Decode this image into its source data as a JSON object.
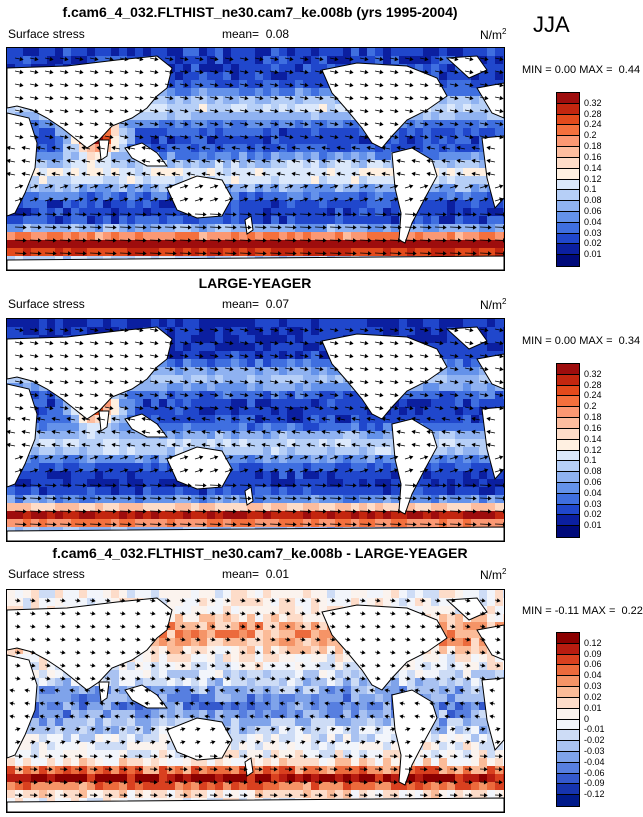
{
  "season": "JJA",
  "units_base": "N/m",
  "units_exp": "2",
  "panels": [
    {
      "title": "f.cam6_4_032.FLTHIST_ne30.cam7_ke.008b (yrs 1995-2004)",
      "variable": "Surface stress",
      "mean_label": "mean=",
      "mean": "0.08",
      "min_label": "MIN =",
      "min": "0.00",
      "max_label": "MAX =",
      "max": "0.44",
      "colorbar": [
        "0.32",
        "0.28",
        "0.24",
        "0.2",
        "0.18",
        "0.16",
        "0.14",
        "0.12",
        "0.1",
        "0.08",
        "0.06",
        "0.04",
        "0.03",
        "0.02",
        "0.01"
      ],
      "colors": [
        "#9e0d0d",
        "#c3260f",
        "#e34a1c",
        "#f4703d",
        "#fb9873",
        "#fdbd9f",
        "#fedcc8",
        "#fff0e1",
        "#dbe8fb",
        "#b6cff7",
        "#8fb2f1",
        "#6492ea",
        "#3f6fe0",
        "#2047cc",
        "#0b1fa0",
        "#000a7a"
      ],
      "field": "base"
    },
    {
      "title": "LARGE-YEAGER",
      "variable": "Surface stress",
      "mean_label": "mean=",
      "mean": "0.07",
      "min_label": "MIN =",
      "min": "0.00",
      "max_label": "MAX =",
      "max": "0.34",
      "colorbar": [
        "0.32",
        "0.28",
        "0.24",
        "0.2",
        "0.18",
        "0.16",
        "0.14",
        "0.12",
        "0.1",
        "0.08",
        "0.06",
        "0.04",
        "0.03",
        "0.02",
        "0.01"
      ],
      "colors": [
        "#9e0d0d",
        "#c3260f",
        "#e34a1c",
        "#f4703d",
        "#fb9873",
        "#fdbd9f",
        "#fedcc8",
        "#fff0e1",
        "#dbe8fb",
        "#b6cff7",
        "#8fb2f1",
        "#6492ea",
        "#3f6fe0",
        "#2047cc",
        "#0b1fa0",
        "#000a7a"
      ],
      "field": "base"
    },
    {
      "title": "f.cam6_4_032.FLTHIST_ne30.cam7_ke.008b - LARGE-YEAGER",
      "variable": "Surface stress",
      "mean_label": "mean=",
      "mean": "0.01",
      "min_label": "MIN =",
      "min": "-0.11",
      "max_label": "MAX =",
      "max": "0.22",
      "colorbar": [
        "0.12",
        "0.09",
        "0.06",
        "0.04",
        "0.03",
        "0.02",
        "0.01",
        "0",
        "-0.01",
        "-0.02",
        "-0.03",
        "-0.04",
        "-0.06",
        "-0.09",
        "-0.12"
      ],
      "colors": [
        "#8b0000",
        "#b81c10",
        "#d9401f",
        "#ec6a3c",
        "#f59467",
        "#fbbb98",
        "#fddcc9",
        "#fbf3ee",
        "#f2f5fb",
        "#cddcf6",
        "#a9c2f1",
        "#7fa3ea",
        "#577fe0",
        "#3459cd",
        "#1634ae",
        "#001a8a"
      ],
      "field": "diff"
    }
  ]
}
